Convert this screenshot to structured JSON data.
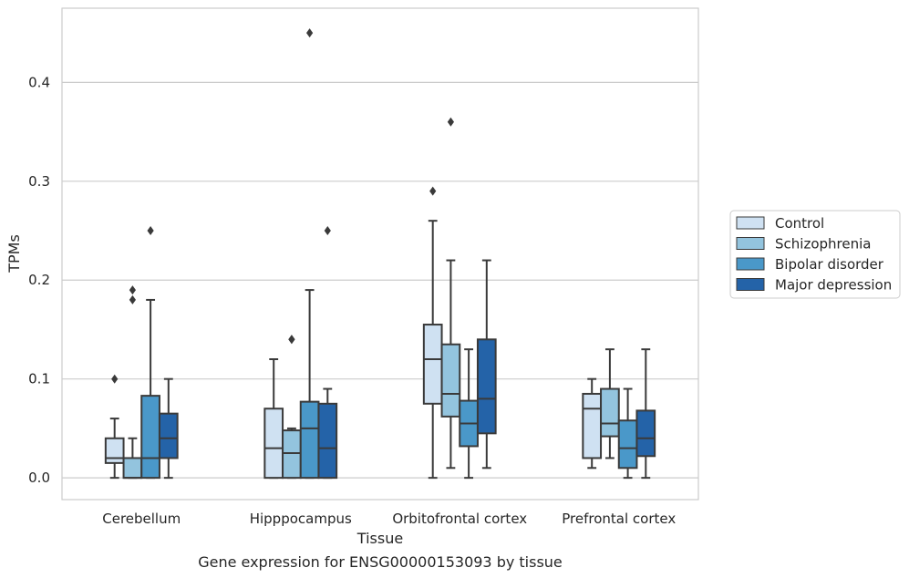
{
  "chart_data": {
    "type": "box",
    "title": "",
    "caption": "Gene expression for ENSG00000153093 by tissue",
    "xlabel": "Tissue",
    "ylabel": "TPMs",
    "ylim": [
      -0.022,
      0.475
    ],
    "yticks": [
      0.0,
      0.1,
      0.2,
      0.3,
      0.4
    ],
    "ytick_labels": [
      "0.0",
      "0.1",
      "0.2",
      "0.3",
      "0.4"
    ],
    "grid": "horizontal",
    "legend_position": "right",
    "categories": [
      "Cerebellum",
      "Hipppocampus",
      "Orbitofrontal cortex",
      "Prefrontal cortex"
    ],
    "series": [
      {
        "name": "Control",
        "color": "#cfe1f2",
        "boxes": [
          {
            "whislo": 0.0,
            "q1": 0.015,
            "med": 0.02,
            "q3": 0.04,
            "whishi": 0.06,
            "fliers": [
              0.1
            ]
          },
          {
            "whislo": 0.0,
            "q1": 0.0,
            "med": 0.03,
            "q3": 0.07,
            "whishi": 0.12,
            "fliers": []
          },
          {
            "whislo": 0.0,
            "q1": 0.075,
            "med": 0.12,
            "q3": 0.155,
            "whishi": 0.26,
            "fliers": [
              0.29
            ]
          },
          {
            "whislo": 0.01,
            "q1": 0.02,
            "med": 0.07,
            "q3": 0.085,
            "whishi": 0.1,
            "fliers": []
          }
        ]
      },
      {
        "name": "Schizophrenia",
        "color": "#93c4de",
        "boxes": [
          {
            "whislo": 0.0,
            "q1": 0.0,
            "med": 0.0,
            "q3": 0.02,
            "whishi": 0.04,
            "fliers": [
              0.18,
              0.19
            ]
          },
          {
            "whislo": 0.0,
            "q1": 0.0,
            "med": 0.025,
            "q3": 0.048,
            "whishi": 0.05,
            "fliers": [
              0.14,
              0.14
            ]
          },
          {
            "whislo": 0.01,
            "q1": 0.062,
            "med": 0.085,
            "q3": 0.135,
            "whishi": 0.22,
            "fliers": [
              0.36
            ]
          },
          {
            "whislo": 0.02,
            "q1": 0.042,
            "med": 0.055,
            "q3": 0.09,
            "whishi": 0.13,
            "fliers": []
          }
        ]
      },
      {
        "name": "Bipolar disorder",
        "color": "#4a98c9",
        "boxes": [
          {
            "whislo": 0.0,
            "q1": 0.0,
            "med": 0.02,
            "q3": 0.083,
            "whishi": 0.18,
            "fliers": [
              0.25
            ]
          },
          {
            "whislo": 0.0,
            "q1": 0.0,
            "med": 0.05,
            "q3": 0.077,
            "whishi": 0.19,
            "fliers": [
              0.45
            ]
          },
          {
            "whislo": 0.0,
            "q1": 0.032,
            "med": 0.055,
            "q3": 0.078,
            "whishi": 0.13,
            "fliers": []
          },
          {
            "whislo": 0.0,
            "q1": 0.01,
            "med": 0.03,
            "q3": 0.058,
            "whishi": 0.09,
            "fliers": []
          }
        ]
      },
      {
        "name": "Major depression",
        "color": "#2463a8",
        "boxes": [
          {
            "whislo": 0.0,
            "q1": 0.02,
            "med": 0.04,
            "q3": 0.065,
            "whishi": 0.1,
            "fliers": []
          },
          {
            "whislo": 0.0,
            "q1": 0.0,
            "med": 0.03,
            "q3": 0.075,
            "whishi": 0.09,
            "fliers": [
              0.25
            ]
          },
          {
            "whislo": 0.01,
            "q1": 0.045,
            "med": 0.08,
            "q3": 0.14,
            "whishi": 0.22,
            "fliers": []
          },
          {
            "whislo": 0.0,
            "q1": 0.022,
            "med": 0.04,
            "q3": 0.068,
            "whishi": 0.13,
            "fliers": []
          }
        ]
      }
    ],
    "colors": {
      "grid": "#cccccc",
      "frame": "#cccccc",
      "box_edge": "#3a3a3a",
      "text": "#262626"
    }
  }
}
